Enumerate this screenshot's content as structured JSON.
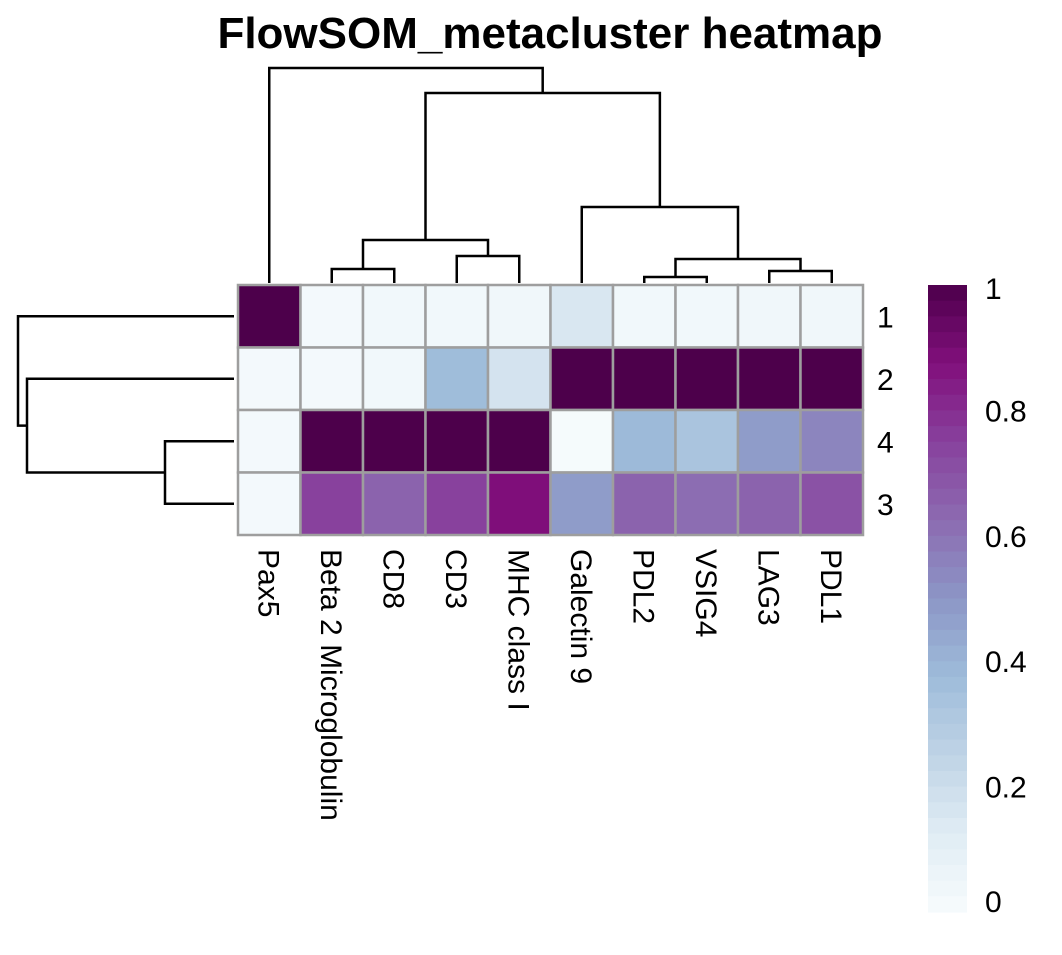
{
  "chart_data": {
    "type": "heatmap",
    "title": "FlowSOM_metacluster heatmap",
    "columns": [
      "Pax5",
      "Beta 2 Microglobulin",
      "CD8",
      "CD3",
      "MHC class I",
      "Galectin 9",
      "PDL2",
      "VSIG4",
      "LAG3",
      "PDL1"
    ],
    "rows": [
      "1",
      "2",
      "4",
      "3"
    ],
    "values": [
      [
        1.0,
        0.02,
        0.03,
        0.03,
        0.04,
        0.15,
        0.03,
        0.03,
        0.04,
        0.04
      ],
      [
        0.02,
        0.02,
        0.03,
        0.37,
        0.17,
        1.0,
        1.0,
        1.0,
        1.0,
        1.0
      ],
      [
        0.02,
        1.0,
        1.0,
        1.0,
        1.0,
        0.01,
        0.38,
        0.33,
        0.48,
        0.55
      ],
      [
        0.02,
        0.75,
        0.65,
        0.75,
        0.88,
        0.48,
        0.65,
        0.62,
        0.65,
        0.7
      ]
    ],
    "legend": {
      "ticks": [
        "1",
        "0.8",
        "0.6",
        "0.4",
        "0.2",
        "0"
      ],
      "range": [
        0,
        1
      ],
      "placement": "right"
    },
    "color_scale": [
      "#f7fcfd",
      "#e0ecf4",
      "#bfd3e6",
      "#9ebcda",
      "#8c96c6",
      "#8c6bb1",
      "#88419d",
      "#810f7c",
      "#4d004b"
    ],
    "dendrograms": [
      "columns-top",
      "rows-left"
    ]
  }
}
